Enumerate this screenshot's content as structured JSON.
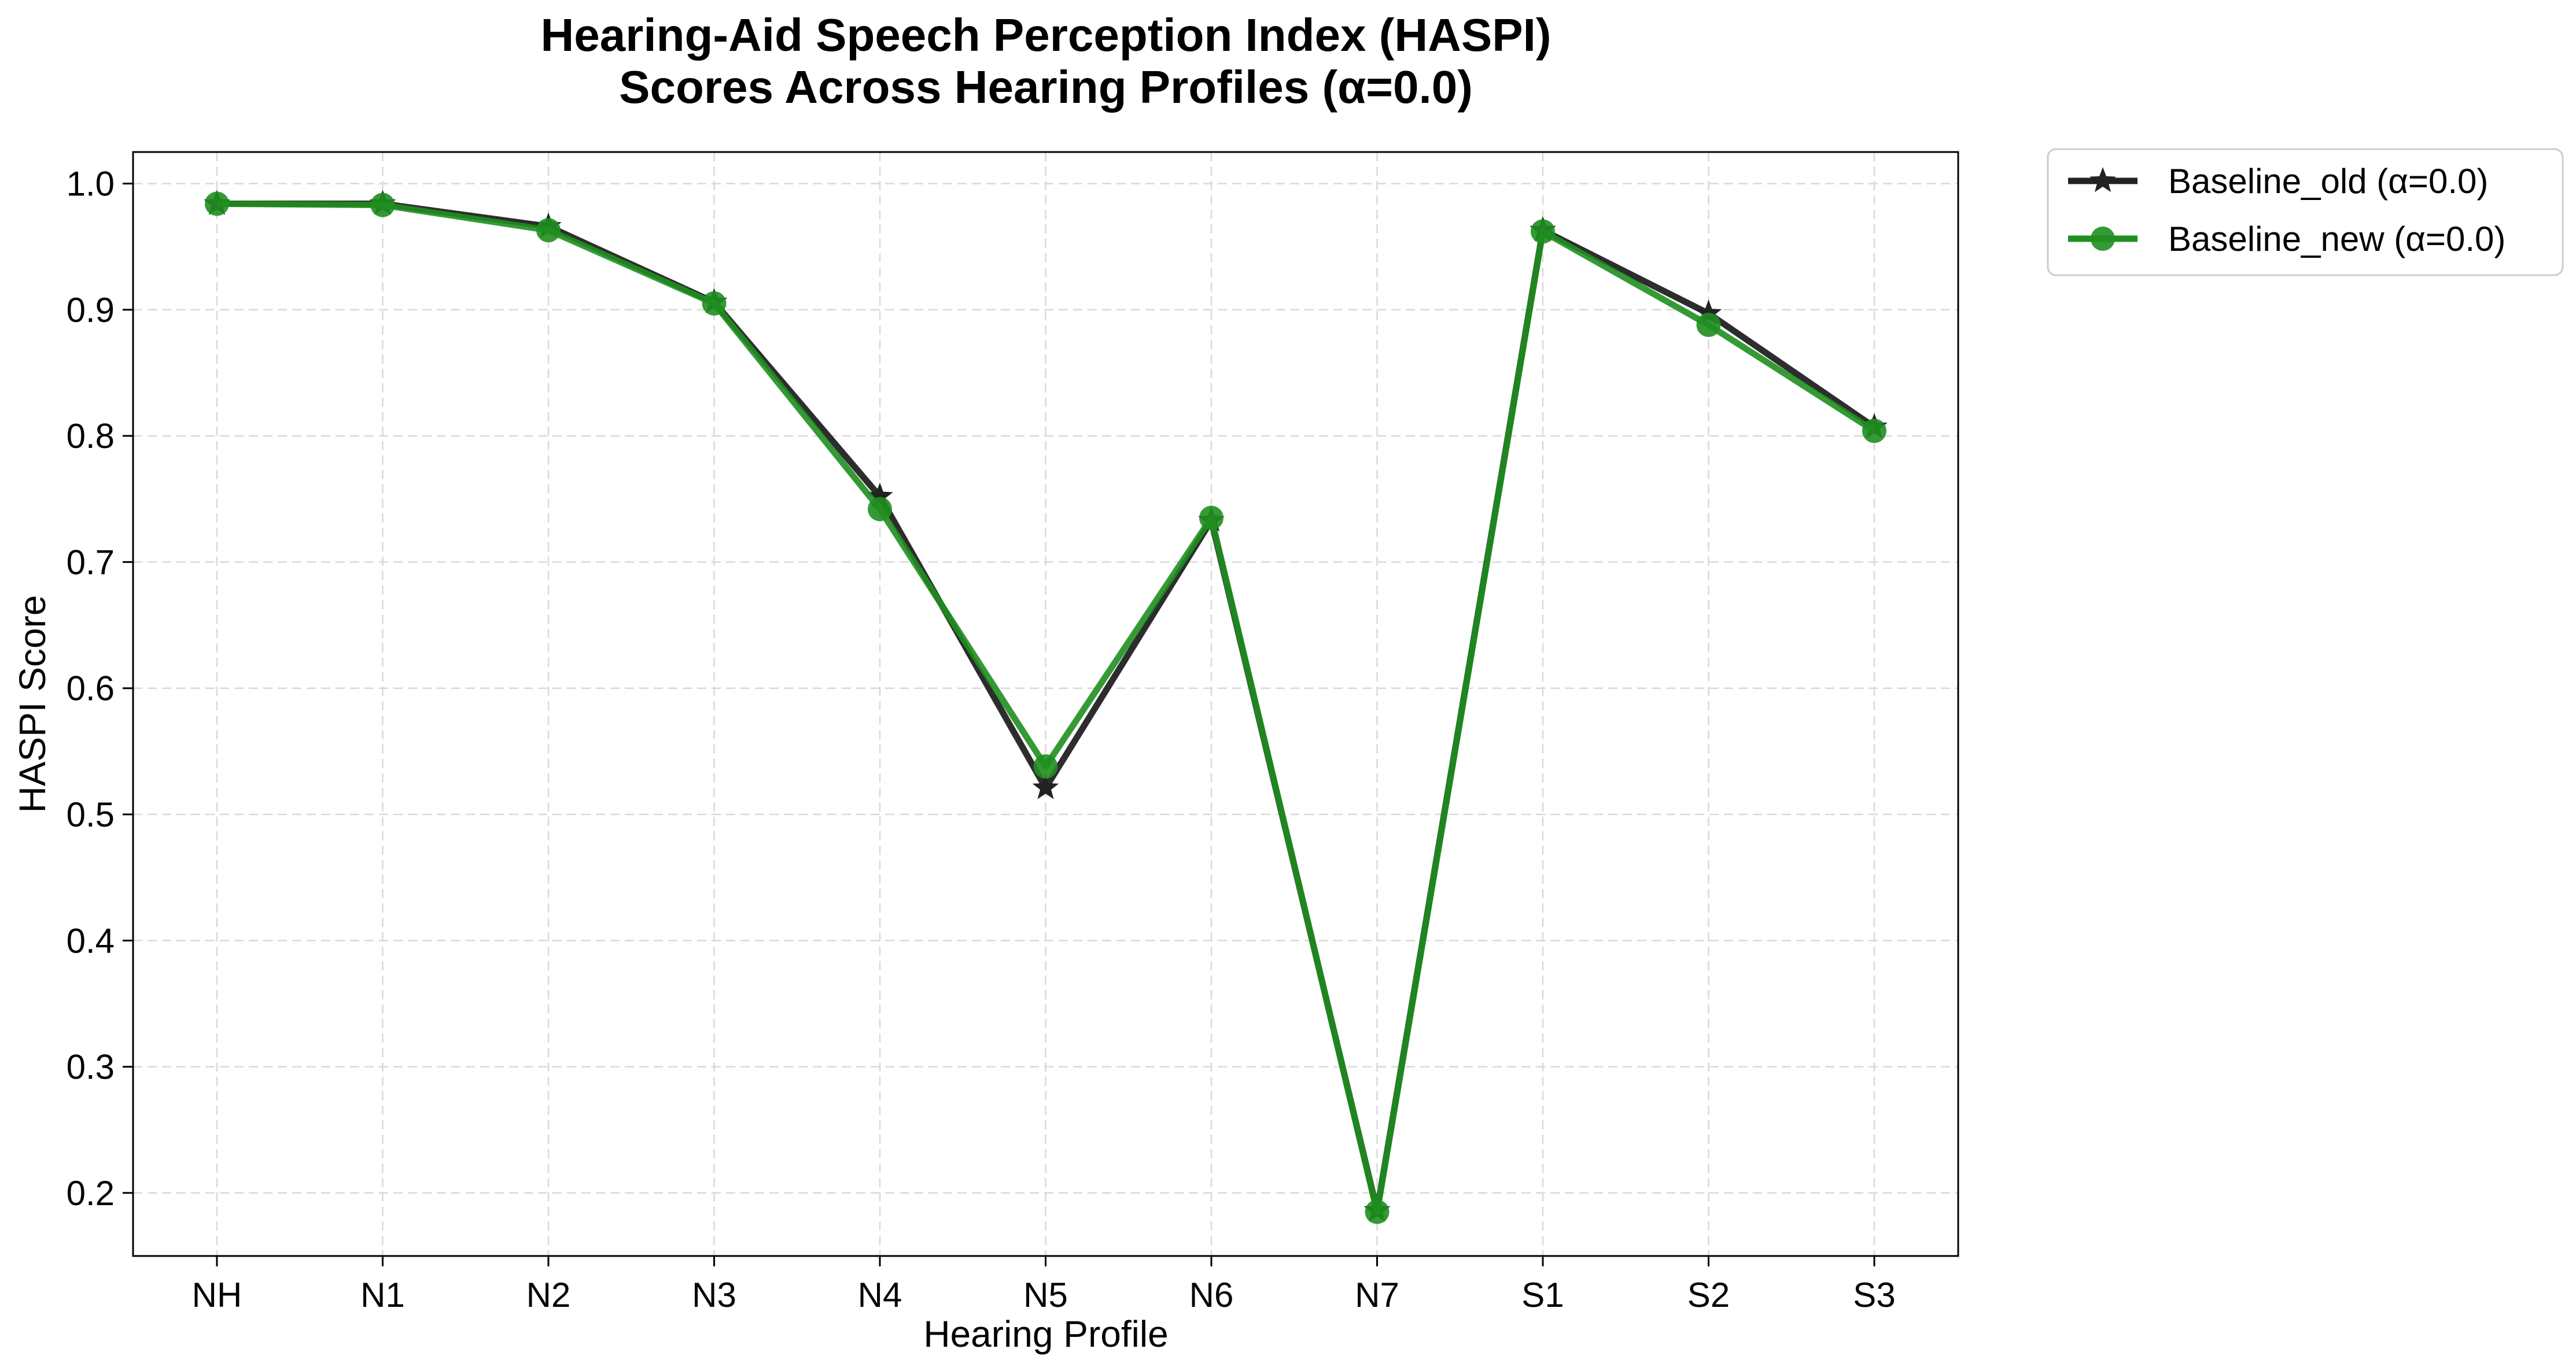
{
  "chart_data": {
    "type": "line",
    "title": "Hearing-Aid Speech Perception Index (HASPI)\nScores Across Hearing Profiles (α=0.0)",
    "xlabel": "Hearing Profile",
    "ylabel": "HASPI Score",
    "categories": [
      "NH",
      "N1",
      "N2",
      "N3",
      "N4",
      "N5",
      "N6",
      "N7",
      "S1",
      "S2",
      "S3"
    ],
    "ylim": [
      0.15,
      1.025
    ],
    "yticks": [
      "0.2",
      "0.3",
      "0.4",
      "0.5",
      "0.6",
      "0.7",
      "0.8",
      "0.9",
      "1.0"
    ],
    "grid": true,
    "legend_position": "outside-top-right",
    "series": [
      {
        "name": "Baseline_old (α=0.0)",
        "color": "#222222",
        "marker": "star",
        "values": [
          0.984,
          0.984,
          0.966,
          0.906,
          0.752,
          0.521,
          0.733,
          0.186,
          0.963,
          0.897,
          0.807
        ]
      },
      {
        "name": "Baseline_new (α=0.0)",
        "color": "#1f8f1f",
        "marker": "circle",
        "values": [
          0.984,
          0.983,
          0.963,
          0.905,
          0.742,
          0.538,
          0.735,
          0.185,
          0.962,
          0.888,
          0.804
        ]
      }
    ]
  }
}
